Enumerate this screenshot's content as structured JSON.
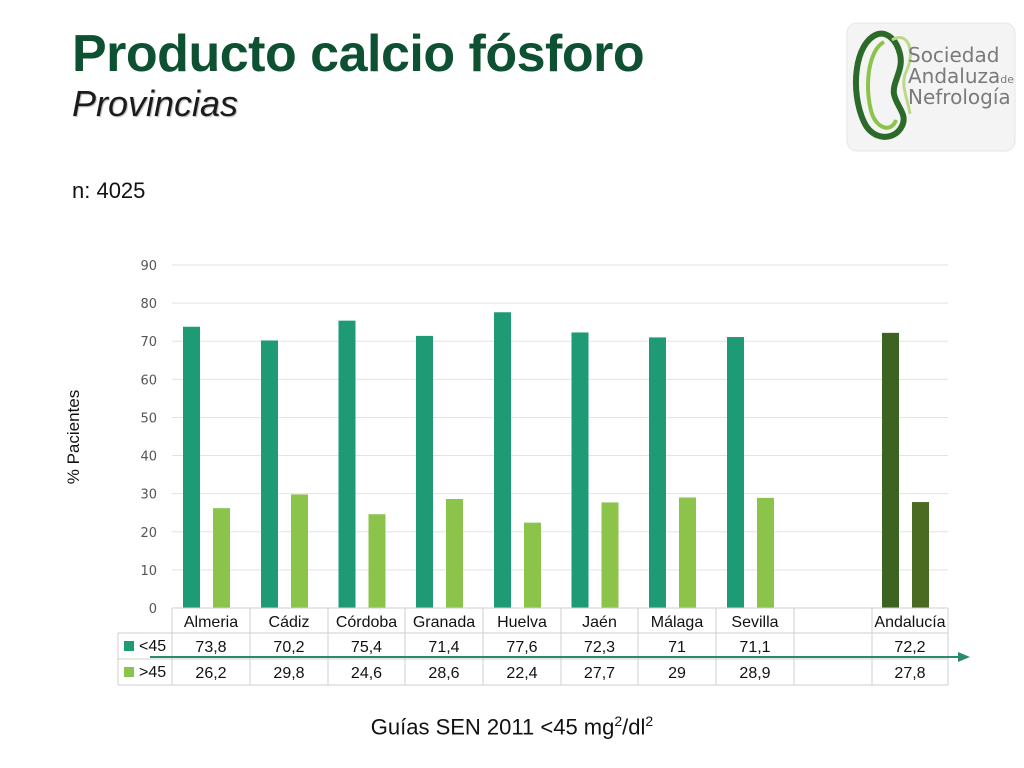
{
  "slide": {
    "title": "Producto calcio fósforo",
    "subtitle": "Provincias",
    "n_label": "n: 4025",
    "footer_prefix": "Guías SEN 2011 <45 mg",
    "footer_sup1": "2",
    "footer_mid": "/dl",
    "footer_sup2": "2"
  },
  "logo": {
    "line1": "Sociedad",
    "line2": "Andaluza",
    "line2_small": "de",
    "line3": "Nefrología"
  },
  "colors": {
    "title": "#0e5132",
    "series1": "#1e9b74",
    "series2": "#8cc34a",
    "total1": "#3d6322",
    "total2": "#4b6b23",
    "arrow": "#2a8a6a"
  },
  "chart_data": {
    "type": "bar",
    "ylabel": "% Pacientes",
    "ylim": [
      0,
      90
    ],
    "yticks": [
      "0",
      "10",
      "20",
      "30",
      "40",
      "50",
      "60",
      "70",
      "80",
      "90"
    ],
    "grid": true,
    "categories": [
      "Almeria",
      "Cádiz",
      "Córdoba",
      "Granada",
      "Huelva",
      "Jaén",
      "Málaga",
      "Sevilla",
      "",
      "Andalucía"
    ],
    "series": [
      {
        "name": "<45",
        "values": [
          73.8,
          70.2,
          75.4,
          71.4,
          77.6,
          72.3,
          71,
          71.1,
          null,
          72.2
        ],
        "labels": [
          "73,8",
          "70,2",
          "75,4",
          "71,4",
          "77,6",
          "72,3",
          "71",
          "71,1",
          "",
          "72,2"
        ]
      },
      {
        "name": ">45",
        "values": [
          26.2,
          29.8,
          24.6,
          28.6,
          22.4,
          27.7,
          29,
          28.9,
          null,
          27.8
        ],
        "labels": [
          "26,2",
          "29,8",
          "24,6",
          "28,6",
          "22,4",
          "27,7",
          "29",
          "28,9",
          "",
          "27,8"
        ]
      }
    ],
    "legend": "data-table"
  }
}
